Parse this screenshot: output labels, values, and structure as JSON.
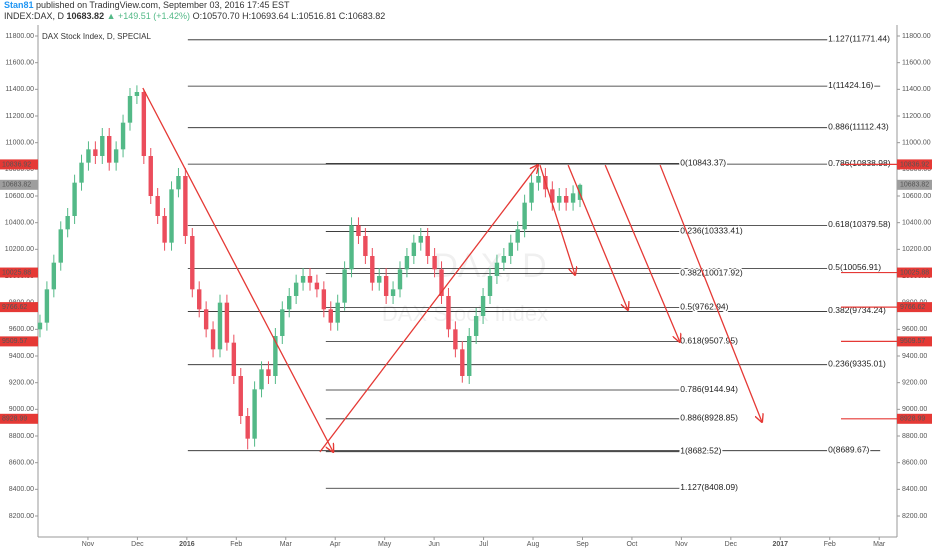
{
  "header": {
    "author": "Stan81",
    "published": "published on TradingView.com, September 03, 2016 17:45 EST",
    "symbol": "INDEX:DAX, D",
    "last": "10683.82",
    "change": "▲ +149.51 (+1.42%)",
    "ohlc": "O:10570.70 H:10693.64 L:10516.81 C:10683.82"
  },
  "chart_data": {
    "type": "candlestick",
    "title": "DAX Stock Index, D, SPECIAL",
    "watermark": [
      "DAX, D",
      "DAX Stock Index"
    ],
    "up_color": "#53b987",
    "down_color": "#eb4d5c",
    "xlim": [
      -1.01,
      16.36
    ],
    "xticks": [
      {
        "value": 0,
        "label": "Nov"
      },
      {
        "value": 1,
        "label": "Dec"
      },
      {
        "value": 2,
        "label": "2016"
      },
      {
        "value": 3,
        "label": "Feb"
      },
      {
        "value": 4,
        "label": "Mar"
      },
      {
        "value": 5,
        "label": "Apr"
      },
      {
        "value": 6,
        "label": "May"
      },
      {
        "value": 7,
        "label": "Jun"
      },
      {
        "value": 8,
        "label": "Jul"
      },
      {
        "value": 9,
        "label": "Aug"
      },
      {
        "value": 10,
        "label": "Sep"
      },
      {
        "value": 11,
        "label": "Oct"
      },
      {
        "value": 12,
        "label": "Nov"
      },
      {
        "value": 13,
        "label": "Dec"
      },
      {
        "value": 14,
        "label": "2017"
      },
      {
        "value": 15,
        "label": "Feb"
      },
      {
        "value": 16,
        "label": "Mar"
      }
    ],
    "ylim": [
      8042.5,
      11882.5
    ],
    "yticks": [
      {
        "value": 8200,
        "label": "8200.00"
      },
      {
        "value": 8400,
        "label": "8400.00"
      },
      {
        "value": 8600,
        "label": "8600.00"
      },
      {
        "value": 8800,
        "label": "8800.00"
      },
      {
        "value": 9000,
        "label": "9000.00"
      },
      {
        "value": 9200,
        "label": "9200.00"
      },
      {
        "value": 9400,
        "label": "9400.00"
      },
      {
        "value": 9600,
        "label": "9600.00"
      },
      {
        "value": 9800,
        "label": "9800.00"
      },
      {
        "value": 10000,
        "label": "10000.00"
      },
      {
        "value": 10200,
        "label": "10200.00"
      },
      {
        "value": 10400,
        "label": "10400.00"
      },
      {
        "value": 10600,
        "label": "10600.00"
      },
      {
        "value": 10800,
        "label": "10800.00"
      },
      {
        "value": 11000,
        "label": "11000.00"
      },
      {
        "value": 11200,
        "label": "11200.00"
      },
      {
        "value": 11400,
        "label": "11400.00"
      },
      {
        "value": 11600,
        "label": "11600.00"
      },
      {
        "value": 11800,
        "label": "11800.00"
      }
    ],
    "x": [
      -0.97,
      -0.83,
      -0.69,
      -0.55,
      -0.41,
      -0.27,
      -0.13,
      0.01,
      0.15,
      0.29,
      0.43,
      0.57,
      0.71,
      0.85,
      0.99,
      1.13,
      1.27,
      1.41,
      1.55,
      1.69,
      1.83,
      1.97,
      2.11,
      2.25,
      2.39,
      2.53,
      2.67,
      2.81,
      2.95,
      3.09,
      3.23,
      3.37,
      3.51,
      3.65,
      3.79,
      3.93,
      4.07,
      4.21,
      4.35,
      4.49,
      4.63,
      4.77,
      4.91,
      5.05,
      5.19,
      5.33,
      5.47,
      5.61,
      5.75,
      5.89,
      6.03,
      6.17,
      6.31,
      6.45,
      6.59,
      6.73,
      6.87,
      7.01,
      7.15,
      7.29,
      7.43,
      7.57,
      7.71,
      7.85,
      7.99,
      8.13,
      8.27,
      8.41,
      8.55,
      8.69,
      8.83,
      8.97,
      9.11,
      9.25,
      9.39,
      9.53,
      9.67,
      9.81,
      9.95
    ],
    "open": [
      9600,
      9650,
      9900,
      10100,
      10350,
      10450,
      10700,
      10850,
      10950,
      10900,
      11050,
      10850,
      10950,
      11150,
      11350,
      11380,
      10900,
      10600,
      10450,
      10250,
      10650,
      10750,
      10300,
      9900,
      9750,
      9600,
      9450,
      9800,
      9500,
      9250,
      8950,
      8780,
      9150,
      9300,
      9250,
      9550,
      9750,
      9850,
      9950,
      10000,
      9950,
      9900,
      9750,
      9650,
      9800,
      10050,
      10380,
      10300,
      10150,
      9950,
      10000,
      9850,
      9900,
      10050,
      10150,
      10250,
      10300,
      10150,
      10050,
      9850,
      9600,
      9450,
      9250,
      9550,
      9700,
      9850,
      10000,
      10100,
      10150,
      10250,
      10350,
      10550,
      10700,
      10750,
      10650,
      10550,
      10600,
      10550,
      10570.7
    ],
    "high": [
      9710,
      9960,
      10160,
      10410,
      10510,
      10760,
      10910,
      11010,
      11010,
      11110,
      11110,
      11010,
      11210,
      11410,
      11430,
      11400,
      10960,
      10660,
      10510,
      10710,
      10810,
      10810,
      10360,
      9960,
      9810,
      9660,
      9860,
      9860,
      9560,
      9310,
      9010,
      9210,
      9360,
      9360,
      9610,
      9810,
      9910,
      10010,
      10060,
      10060,
      10010,
      9960,
      9810,
      9860,
      10110,
      10440,
      10440,
      10360,
      10210,
      10060,
      10060,
      9960,
      10110,
      10210,
      10310,
      10360,
      10360,
      10210,
      10110,
      9910,
      9660,
      9510,
      9610,
      9760,
      9910,
      10060,
      10160,
      10210,
      10310,
      10410,
      10610,
      10760,
      10810,
      10810,
      10710,
      10660,
      10660,
      10680,
      10693.64
    ],
    "low": [
      9540,
      9590,
      9840,
      10040,
      10290,
      10390,
      10640,
      10790,
      10840,
      10840,
      10790,
      10790,
      10890,
      11090,
      11290,
      10840,
      10540,
      10390,
      10190,
      10190,
      10590,
      10240,
      9840,
      9690,
      9540,
      9390,
      9390,
      9440,
      9190,
      8890,
      8700,
      8720,
      9090,
      9190,
      9190,
      9490,
      9690,
      9790,
      9890,
      9890,
      9840,
      9690,
      9590,
      9590,
      9740,
      9990,
      10240,
      10090,
      9890,
      9890,
      9790,
      9790,
      9840,
      9990,
      10090,
      10190,
      10090,
      9990,
      9790,
      9540,
      9390,
      9200,
      9190,
      9490,
      9640,
      9790,
      9940,
      10040,
      10090,
      10190,
      10290,
      10490,
      10640,
      10590,
      10490,
      10490,
      10490,
      10490,
      10516.81
    ],
    "close": [
      9650,
      9900,
      10100,
      10350,
      10450,
      10700,
      10850,
      10950,
      10900,
      11050,
      10850,
      10950,
      11150,
      11350,
      11380,
      10900,
      10600,
      10450,
      10250,
      10650,
      10750,
      10300,
      9900,
      9750,
      9600,
      9450,
      9800,
      9500,
      9250,
      8950,
      8780,
      9150,
      9300,
      9250,
      9550,
      9750,
      9850,
      9950,
      10000,
      9950,
      9900,
      9750,
      9650,
      9800,
      10050,
      10380,
      10300,
      10150,
      9950,
      10000,
      9850,
      9900,
      10050,
      10150,
      10250,
      10300,
      10150,
      10050,
      9850,
      9600,
      9450,
      9250,
      9550,
      9700,
      9850,
      10000,
      10100,
      10150,
      10250,
      10350,
      10550,
      10700,
      10750,
      10650,
      10550,
      10600,
      10550,
      10620,
      10683.82
    ],
    "fib_groups": [
      {
        "xrange": [
          2.02,
          16.02
        ],
        "levels": [
          {
            "value": 11771.44,
            "label": "1.127(11771.44)"
          },
          {
            "value": 11424.16,
            "label": "1(11424.16)"
          },
          {
            "value": 11112.43,
            "label": "0.886(11112.43)"
          },
          {
            "value": 10838.98,
            "label": "0.786(10838.98)"
          },
          {
            "value": 10379.58,
            "label": "0.618(10379.58)"
          },
          {
            "value": 10056.91,
            "label": "0.5(10056.91)"
          },
          {
            "value": 9734.24,
            "label": "0.382(9734.24)"
          },
          {
            "value": 9335.01,
            "label": "0.236(9335.01)"
          },
          {
            "value": 8689.67,
            "label": "0(8689.67)"
          }
        ]
      },
      {
        "xrange": [
          4.81,
          12.18
        ],
        "levels": [
          {
            "value": 10843.37,
            "label": "0(10843.37)"
          },
          {
            "value": 10333.41,
            "label": "0.236(10333.41)"
          },
          {
            "value": 10017.92,
            "label": "0.382(10017.92)"
          },
          {
            "value": 9762.94,
            "label": "0.5(9762.94)"
          },
          {
            "value": 9507.95,
            "label": "0.618(9507.95)"
          },
          {
            "value": 9144.94,
            "label": "0.786(9144.94)"
          },
          {
            "value": 8928.85,
            "label": "0.886(8928.85)"
          },
          {
            "value": 8682.52,
            "label": "1(8682.52)"
          },
          {
            "value": 8408.09,
            "label": "1.127(8408.09)"
          }
        ]
      }
    ],
    "arrow_color": "#e53935",
    "arrows": [
      {
        "x": [
          1.11,
          4.96
        ],
        "y": [
          11410,
          8680
        ]
      },
      {
        "x": [
          4.69,
          9.1
        ],
        "y": [
          8680,
          10832
        ]
      },
      {
        "x": [
          9.14,
          9.85
        ],
        "y": [
          10832,
          10008
        ]
      },
      {
        "x": [
          9.71,
          10.92
        ],
        "y": [
          10832,
          9745
        ]
      },
      {
        "x": [
          10.46,
          11.97
        ],
        "y": [
          10832,
          9505
        ]
      },
      {
        "x": [
          11.57,
          13.63
        ],
        "y": [
          10832,
          8905
        ]
      }
    ],
    "price_tags": {
      "values": [
        10836.92,
        10683.82,
        10025.88,
        9766.62,
        9509.57,
        8928.99
      ],
      "colors": [
        "#e53935",
        "#9e9e9e",
        "#e53935",
        "#e53935",
        "#e53935",
        "#e53935"
      ]
    }
  }
}
